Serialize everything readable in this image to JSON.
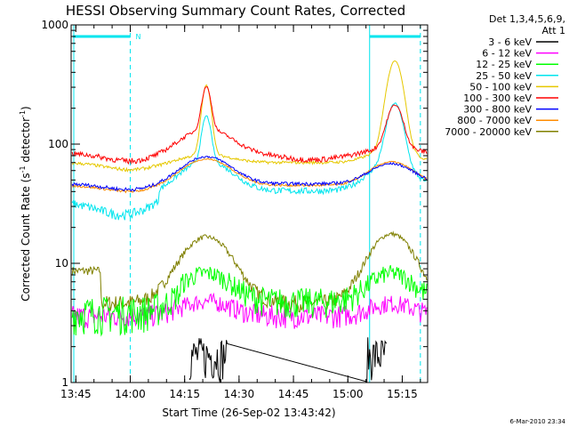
{
  "chart_data": {
    "type": "line",
    "title": "HESSI Observing Summary Count Rates, Corrected",
    "xlabel": "Start Time (26-Sep-02 13:43:42)",
    "ylabel_main": "Corrected Count Rate (s",
    "ylabel_sup1": "-1",
    "ylabel_mid": " detector",
    "ylabel_sup2": "-1",
    "ylabel_end": ")",
    "y_scale": "log",
    "ylim": [
      1,
      1000
    ],
    "xlim": [
      "13:43:42",
      "15:22:00"
    ],
    "x_ticks": [
      "13:45",
      "14:00",
      "14:15",
      "14:30",
      "14:45",
      "15:00",
      "15:15"
    ],
    "y_ticks": [
      "1",
      "10",
      "100",
      "1000"
    ],
    "legend_header_1": "Det 1,3,4,5,6,9,",
    "legend_header_2": "Att 1",
    "legend_placement": "right",
    "annotation_n": "N",
    "timestamp": "6-Mar-2010 23:34",
    "night_intervals": [
      [
        "13:43:42",
        "14:00:00"
      ],
      [
        "15:06:00",
        "15:20:00"
      ]
    ],
    "series": [
      {
        "name": "3 - 6 keV",
        "color": "#000000"
      },
      {
        "name": "6 - 12 keV",
        "color": "#ff00ff"
      },
      {
        "name": "12 - 25 keV",
        "color": "#00ff00"
      },
      {
        "name": "25 - 50 keV",
        "color": "#00e5ee"
      },
      {
        "name": "50 - 100 keV",
        "color": "#e6c800"
      },
      {
        "name": "100 - 300 keV",
        "color": "#ff0000"
      },
      {
        "name": "300 - 800 keV",
        "color": "#0000ff"
      },
      {
        "name": "800 - 7000 keV",
        "color": "#ff8c00"
      },
      {
        "name": "7000 - 20000 keV",
        "color": "#808000"
      }
    ]
  }
}
